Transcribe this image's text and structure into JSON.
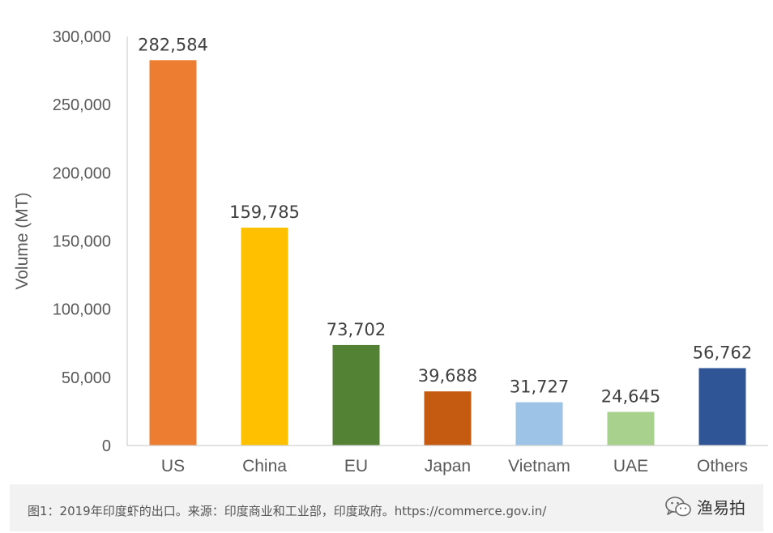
{
  "chart_data": {
    "type": "bar",
    "categories": [
      "US",
      "China",
      "EU",
      "Japan",
      "Vietnam",
      "UAE",
      "Others"
    ],
    "values": [
      282584,
      159785,
      73702,
      39688,
      31727,
      24645,
      56762
    ],
    "value_labels": [
      "282,584",
      "159,785",
      "73,702",
      "39,688",
      "31,727",
      "24,645",
      "56,762"
    ],
    "colors": [
      "#ED7D31",
      "#FFC000",
      "#548235",
      "#C55A11",
      "#9DC3E6",
      "#A9D18E",
      "#2F5597"
    ],
    "ylabel": "Volume (MT)",
    "ylim": [
      0,
      300000
    ],
    "yticks": [
      0,
      50000,
      100000,
      150000,
      200000,
      250000,
      300000
    ],
    "ytick_labels": [
      "0",
      "50,000",
      "100,000",
      "150,000",
      "200,000",
      "250,000",
      "300,000"
    ],
    "grid": false,
    "legend": "none"
  },
  "caption": {
    "text": "图1：2019年印度虾的出口。来源：印度商业和工业部，印度政府。https://commerce.gov.in/",
    "brand": "渔易拍",
    "brand_icon": "wechat-icon"
  }
}
